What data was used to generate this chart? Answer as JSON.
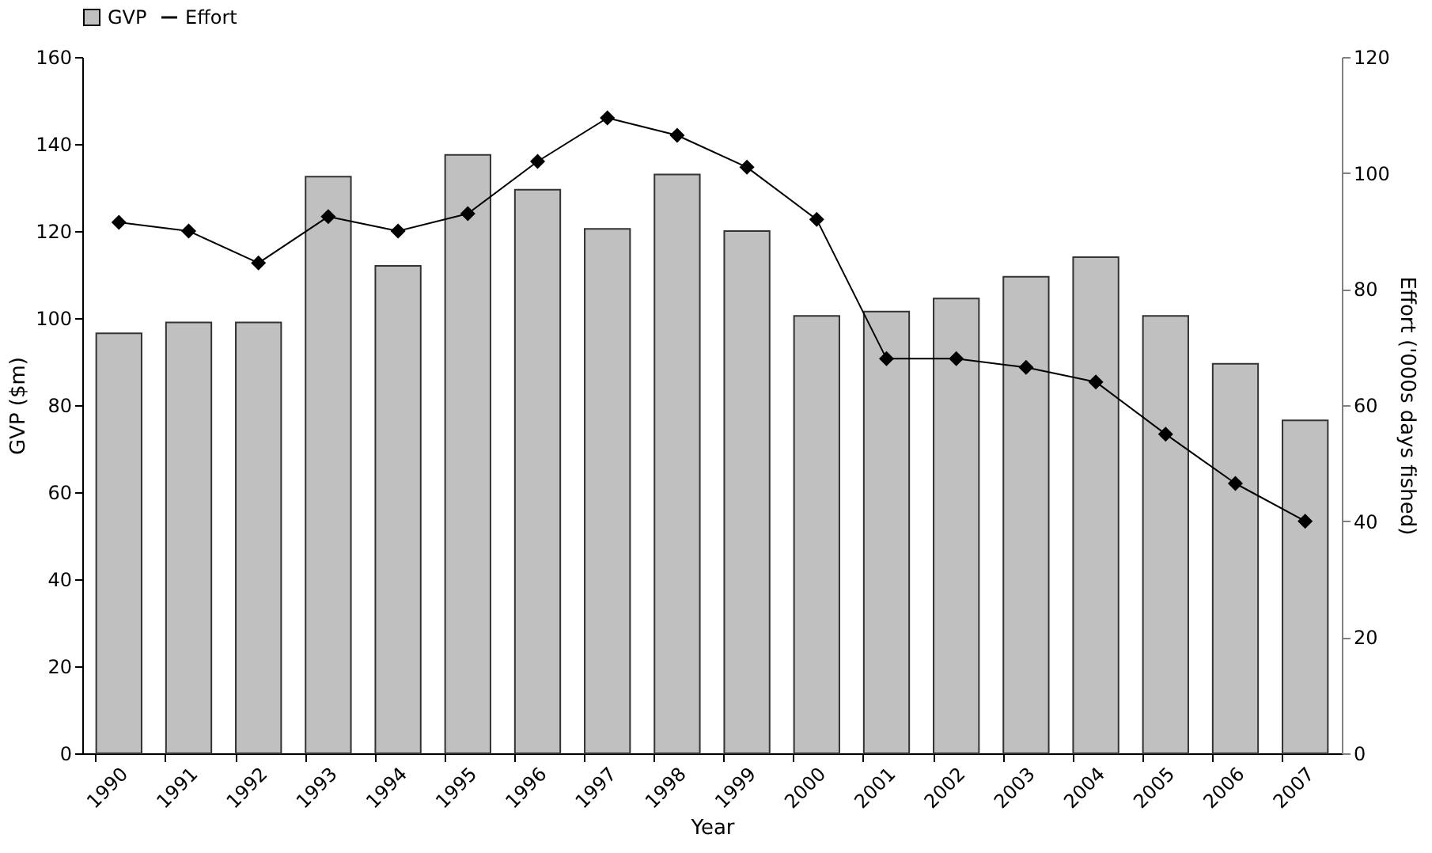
{
  "chart_data": {
    "type": "bar",
    "xlabel": "Year",
    "ylabel": "GVP ($m)",
    "y2label": "Effort ('000s days fished)",
    "categories": [
      "1990",
      "1991",
      "1992",
      "1993",
      "1994",
      "1995",
      "1996",
      "1997",
      "1998",
      "1999",
      "2000",
      "2001",
      "2002",
      "2003",
      "2004",
      "2005",
      "2006",
      "2007"
    ],
    "series": [
      {
        "name": "GVP",
        "color": "#c0c0c0",
        "values": [
          96.5,
          99,
          99,
          132.5,
          112,
          137.5,
          129.5,
          120.5,
          133,
          120,
          100.5,
          101.5,
          104.5,
          109.5,
          114,
          100.5,
          89.5,
          76.5
        ]
      },
      {
        "name": "Effort",
        "type": "line",
        "axis": "y2",
        "color": "#000000",
        "marker": "diamond",
        "values": [
          91.5,
          90,
          84.5,
          92.5,
          90,
          93,
          102,
          109.5,
          106.5,
          101,
          92,
          68,
          68,
          66.5,
          64,
          55,
          46.5,
          40
        ]
      }
    ],
    "ylim": [
      0,
      160
    ],
    "yticks": [
      0,
      20,
      40,
      60,
      80,
      100,
      120,
      140,
      160
    ],
    "y2lim": [
      0,
      120
    ],
    "y2ticks": [
      0,
      20,
      40,
      60,
      80,
      100,
      120
    ],
    "grid": false,
    "legend": "top"
  }
}
